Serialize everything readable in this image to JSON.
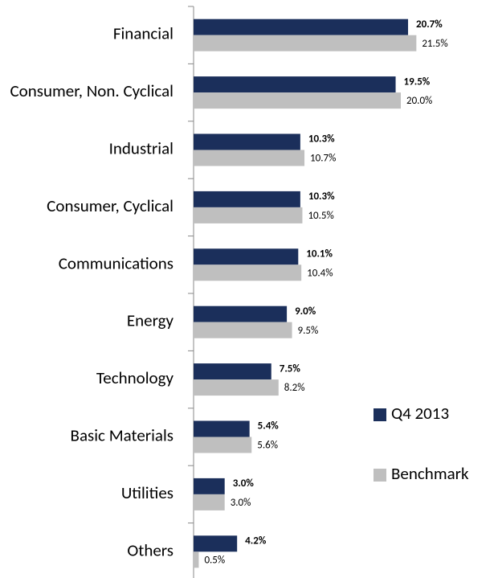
{
  "chart_data": {
    "type": "bar",
    "orientation": "horizontal",
    "categories": [
      "Financial",
      "Consumer, Non. Cyclical",
      "Industrial",
      "Consumer, Cyclical",
      "Communications",
      "Energy",
      "Technology",
      "Basic Materials",
      "Utilities",
      "Others"
    ],
    "series": [
      {
        "name": "Q4 2013",
        "color": "#1b2f5b",
        "values": [
          20.7,
          19.5,
          10.3,
          10.3,
          10.1,
          9.0,
          7.5,
          5.4,
          3.0,
          4.2
        ],
        "value_labels": [
          "20.7%",
          "19.5%",
          "10.3%",
          "10.3%",
          "10.1%",
          "9.0%",
          "7.5%",
          "5.4%",
          "3.0%",
          "4.2%"
        ]
      },
      {
        "name": "Benchmark",
        "color": "#bfbfbf",
        "values": [
          21.5,
          20.0,
          10.7,
          10.5,
          10.4,
          9.5,
          8.2,
          5.6,
          3.0,
          0.5
        ],
        "value_labels": [
          "21.5%",
          "20.0%",
          "10.7%",
          "10.5%",
          "10.4%",
          "9.5%",
          "8.2%",
          "5.6%",
          "3.0%",
          "0.5%"
        ]
      }
    ],
    "legend": "right"
  }
}
